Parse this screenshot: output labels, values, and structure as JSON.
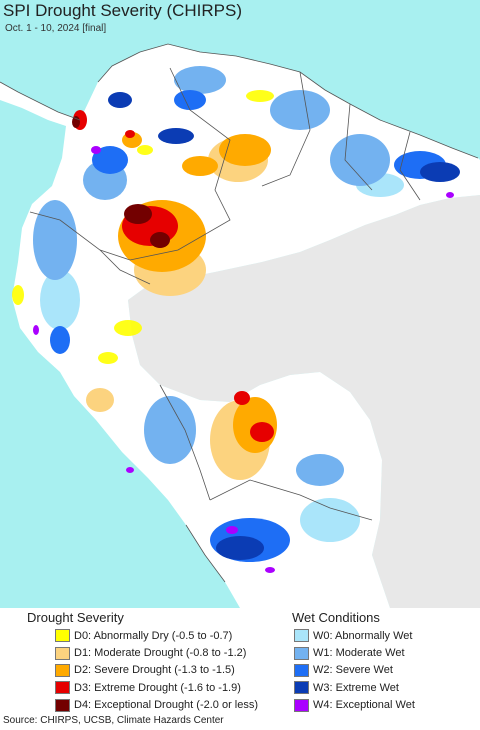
{
  "title": "SPI Drought Severity (CHIRPS)",
  "subtitle": "Oct. 1 - 10, 2024 [final]",
  "map": {
    "colors": {
      "ocean": "#a8f0f0",
      "land": "#ffffff",
      "outside": "#e8e8e8",
      "border": "#555555"
    }
  },
  "legend": {
    "drought": {
      "heading": "Drought Severity",
      "items": [
        {
          "label": "D0: Abnormally Dry (-0.5 to -0.7)",
          "color": "#ffff00"
        },
        {
          "label": "D1: Moderate Drought (-0.8 to -1.2)",
          "color": "#fcd37f"
        },
        {
          "label": "D2: Severe Drought (-1.3 to -1.5)",
          "color": "#ffaa00"
        },
        {
          "label": "D3: Extreme Drought (-1.6 to -1.9)",
          "color": "#e60000"
        },
        {
          "label": "D4: Exceptional Drought (-2.0 or less)",
          "color": "#730000"
        }
      ]
    },
    "wet": {
      "heading": "Wet Conditions",
      "items": [
        {
          "label": "W0: Abnormally Wet",
          "color": "#aae5fa"
        },
        {
          "label": "W1: Moderate Wet",
          "color": "#73b2f0"
        },
        {
          "label": "W2: Severe Wet",
          "color": "#1e6ef5"
        },
        {
          "label": "W3: Extreme Wet",
          "color": "#0b3cb4"
        },
        {
          "label": "W4: Exceptional Wet",
          "color": "#aa00ff"
        }
      ]
    }
  },
  "source": "Source: CHIRPS, UCSB, Climate Hazards Center"
}
